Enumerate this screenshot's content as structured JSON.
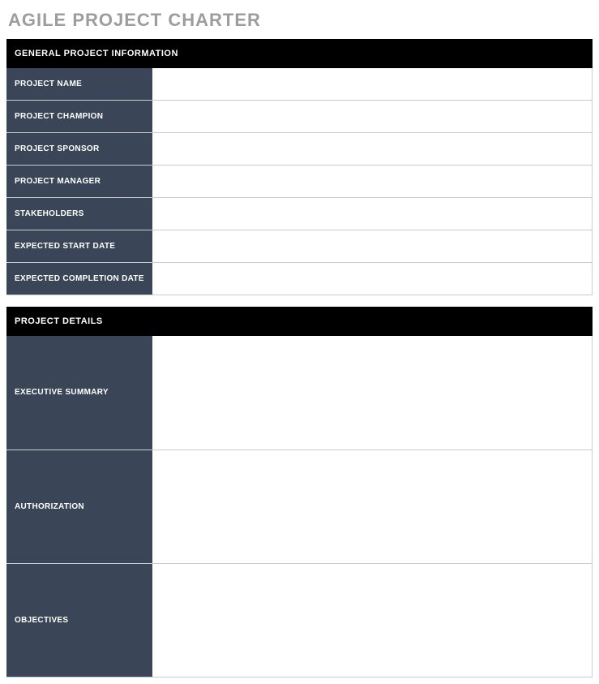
{
  "title": "AGILE PROJECT CHARTER",
  "colors": {
    "title_color": "#9d9d9d",
    "header_bg": "#000000",
    "header_text": "#ffffff",
    "label_bg": "#3a4658",
    "label_text": "#ffffff",
    "border_color": "#cccccc",
    "page_bg": "#ffffff"
  },
  "sections": {
    "general": {
      "header": "GENERAL PROJECT INFORMATION",
      "rows": [
        {
          "label": "PROJECT NAME",
          "value": ""
        },
        {
          "label": "PROJECT CHAMPION",
          "value": ""
        },
        {
          "label": "PROJECT SPONSOR",
          "value": ""
        },
        {
          "label": "PROJECT MANAGER",
          "value": ""
        },
        {
          "label": "STAKEHOLDERS",
          "value": ""
        },
        {
          "label": "EXPECTED START DATE",
          "value": ""
        },
        {
          "label": "EXPECTED COMPLETION DATE",
          "value": ""
        }
      ]
    },
    "details": {
      "header": "PROJECT DETAILS",
      "rows": [
        {
          "label": "EXECUTIVE SUMMARY",
          "value": ""
        },
        {
          "label": "AUTHORIZATION",
          "value": ""
        },
        {
          "label": "OBJECTIVES",
          "value": ""
        }
      ]
    }
  }
}
